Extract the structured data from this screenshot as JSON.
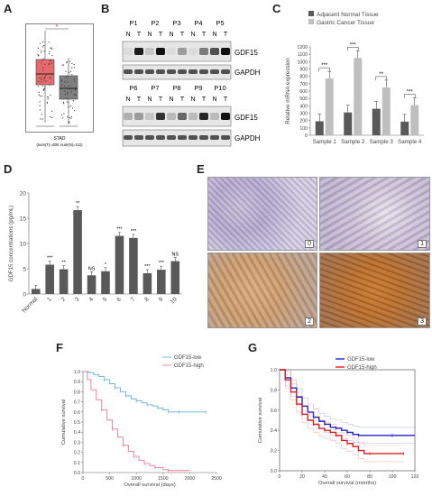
{
  "panels": {
    "A": "A",
    "B": "B",
    "C": "C",
    "D": "D",
    "E": "E",
    "F": "F",
    "G": "G"
  },
  "panelA": {
    "xlabel": "STAD",
    "sublabel": "(num(T)=408; num(N)=211)",
    "yticks": [
      "0",
      "2",
      "4",
      "6",
      "8",
      "10"
    ],
    "colors": {
      "tumor": "#e8696b",
      "normal": "#7f7f7f"
    },
    "star": "*"
  },
  "panelB": {
    "top": {
      "patients": [
        "P1",
        "P2",
        "P3",
        "P4",
        "P5"
      ]
    },
    "bottom": {
      "patients": [
        "P6",
        "P7",
        "P8",
        "P9",
        "P10"
      ]
    },
    "lanes": [
      "N",
      "T"
    ],
    "proteins": [
      "GDF15",
      "GAPDH"
    ]
  },
  "chart_data": [
    {
      "type": "bar",
      "panel": "C",
      "ylabel": "Relative mRNA expression",
      "ylim": [
        0,
        1200
      ],
      "yticks": [
        0,
        100,
        200,
        300,
        400,
        500,
        600,
        700,
        800,
        900,
        1000,
        1100,
        1200
      ],
      "categories": [
        "Sample 1",
        "Sample 2",
        "Sample 3",
        "Sample 4"
      ],
      "series": [
        {
          "name": "Adjacent Normal Tissue",
          "color": "#595959",
          "values": [
            190,
            310,
            360,
            185
          ]
        },
        {
          "name": "Gastric Cancer Tissue",
          "color": "#bfbfbf",
          "values": [
            770,
            1050,
            650,
            410
          ]
        }
      ],
      "significance": [
        "***",
        "***",
        "**",
        "***"
      ]
    },
    {
      "type": "bar",
      "panel": "D",
      "ylabel": "GDF15 concentrations (pg/mL)",
      "ylim": [
        0,
        20
      ],
      "yticks": [
        0,
        5,
        10,
        15,
        20
      ],
      "categories": [
        "Normal",
        "1",
        "2",
        "3",
        "4",
        "5",
        "6",
        "7",
        "8",
        "9",
        "10"
      ],
      "values": [
        1.0,
        5.8,
        4.9,
        16.6,
        3.7,
        4.5,
        11.5,
        11.1,
        4.1,
        4.8,
        6.5
      ],
      "significance": [
        "",
        "***",
        "**",
        "**",
        "NS",
        "*",
        "***",
        "***",
        "***",
        "***",
        "NS"
      ],
      "color": "#595959"
    },
    {
      "type": "line",
      "panel": "F",
      "ylabel": "Cumulative survival",
      "xlabel": "Overall survival (days)",
      "xlim": [
        0,
        2500
      ],
      "ylim": [
        0,
        1.0
      ],
      "xticks": [
        0,
        500,
        1000,
        1500,
        2000,
        2500
      ],
      "yticks": [
        0.0,
        0.1,
        0.2,
        0.3,
        0.4,
        0.5,
        0.6,
        0.7,
        0.8,
        0.9,
        1.0
      ],
      "series": [
        {
          "name": "GDF15-low",
          "color": "#5fb4d8",
          "x": [
            0,
            100,
            200,
            300,
            400,
            500,
            600,
            700,
            800,
            900,
            1000,
            1100,
            1200,
            1300,
            1400,
            1500,
            1600,
            1700,
            1800,
            2000,
            2300
          ],
          "y": [
            1.0,
            0.99,
            0.97,
            0.95,
            0.92,
            0.88,
            0.84,
            0.8,
            0.76,
            0.73,
            0.71,
            0.69,
            0.67,
            0.66,
            0.64,
            0.62,
            0.6,
            0.6,
            0.6,
            0.6,
            0.6
          ]
        },
        {
          "name": "GDF15-high",
          "color": "#f07a90",
          "x": [
            0,
            80,
            150,
            250,
            350,
            450,
            550,
            650,
            750,
            850,
            950,
            1050,
            1150,
            1250,
            1350,
            1500,
            1600,
            2000
          ],
          "y": [
            1.0,
            0.92,
            0.82,
            0.72,
            0.62,
            0.52,
            0.43,
            0.35,
            0.27,
            0.21,
            0.16,
            0.12,
            0.09,
            0.07,
            0.05,
            0.03,
            0.02,
            0.02
          ]
        }
      ]
    },
    {
      "type": "line",
      "panel": "G",
      "ylabel": "Cumulative survival",
      "xlabel": "Overall survival (months)",
      "xlim": [
        0,
        120
      ],
      "ylim": [
        0,
        1.0
      ],
      "xticks": [
        0,
        20,
        40,
        60,
        80,
        100,
        120
      ],
      "yticks": [
        0.0,
        0.2,
        0.4,
        0.6,
        0.8,
        1.0
      ],
      "series": [
        {
          "name": "GDF15-low",
          "color": "#2222cc",
          "x": [
            0,
            5,
            10,
            15,
            20,
            25,
            30,
            35,
            40,
            45,
            50,
            55,
            60,
            65,
            70,
            80,
            100,
            120
          ],
          "y": [
            1.0,
            0.92,
            0.82,
            0.73,
            0.64,
            0.58,
            0.53,
            0.49,
            0.46,
            0.43,
            0.42,
            0.4,
            0.38,
            0.36,
            0.35,
            0.35,
            0.35,
            0.35
          ]
        },
        {
          "name": "GDF15-high",
          "color": "#e02020",
          "x": [
            0,
            5,
            10,
            15,
            20,
            25,
            30,
            35,
            40,
            45,
            50,
            55,
            60,
            65,
            70,
            75,
            80,
            100,
            110
          ],
          "y": [
            1.0,
            0.9,
            0.78,
            0.66,
            0.56,
            0.5,
            0.46,
            0.42,
            0.4,
            0.38,
            0.35,
            0.3,
            0.27,
            0.24,
            0.2,
            0.17,
            0.17,
            0.17,
            0.17
          ]
        }
      ]
    }
  ],
  "panelE": {
    "labels": [
      "0",
      "1",
      "2",
      "3"
    ]
  }
}
